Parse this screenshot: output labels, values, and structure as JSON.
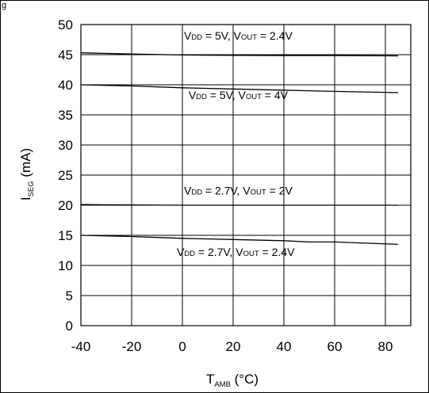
{
  "caption_fragment": "g",
  "chart_data": {
    "type": "line",
    "title": "",
    "xlabel": {
      "main": "T",
      "sub": "AMB",
      "tail": " (°C)"
    },
    "ylabel": {
      "main": "I",
      "sub": "SEG",
      "tail": " (mA)"
    },
    "xlim": [
      -40,
      90
    ],
    "ylim": [
      0,
      50
    ],
    "x_ticks": [
      -40,
      -20,
      0,
      20,
      40,
      60,
      80
    ],
    "y_ticks": [
      0,
      5,
      10,
      15,
      20,
      25,
      30,
      35,
      40,
      45,
      50
    ],
    "grid": true,
    "series": [
      {
        "name": "VDD = 5V, VOUT = 2.4V",
        "label_parts": [
          "V",
          "DD",
          " = 5V, V",
          "OUT",
          " = 2.4V"
        ],
        "label_at": [
          22,
          47.5
        ],
        "x": [
          -40,
          -20,
          0,
          20,
          40,
          60,
          85
        ],
        "y": [
          45.3,
          45.1,
          44.95,
          44.9,
          44.85,
          44.85,
          44.8
        ]
      },
      {
        "name": "VDD = 5V, VOUT = 4V",
        "label_parts": [
          "V",
          "DD",
          " = 5V, V",
          "OUT",
          " = 4V"
        ],
        "label_at": [
          22,
          37.6
        ],
        "x": [
          -40,
          -20,
          0,
          20,
          40,
          60,
          85
        ],
        "y": [
          40.0,
          39.8,
          39.5,
          39.3,
          39.1,
          38.9,
          38.7
        ]
      },
      {
        "name": "VDD = 2.7V, VOUT = 2V",
        "label_parts": [
          "V",
          "DD",
          " = 2.7V, V",
          "OUT",
          " = 2V"
        ],
        "label_at": [
          22,
          21.8
        ],
        "x": [
          -40,
          -20,
          0,
          20,
          40,
          60,
          85
        ],
        "y": [
          20.1,
          20.05,
          20.0,
          20.0,
          20.0,
          20.0,
          20.0
        ]
      },
      {
        "name": "VDD = 2.7V, VOUT = 2.4V",
        "label_parts": [
          "V",
          "DD",
          " = 2.7V, V",
          "OUT",
          " = 2.4V"
        ],
        "label_at": [
          21,
          11.6
        ],
        "x": [
          -40,
          -20,
          0,
          20,
          40,
          50,
          60,
          85
        ],
        "y": [
          15.0,
          14.8,
          14.5,
          14.3,
          14.1,
          13.9,
          13.9,
          13.5
        ]
      }
    ]
  }
}
